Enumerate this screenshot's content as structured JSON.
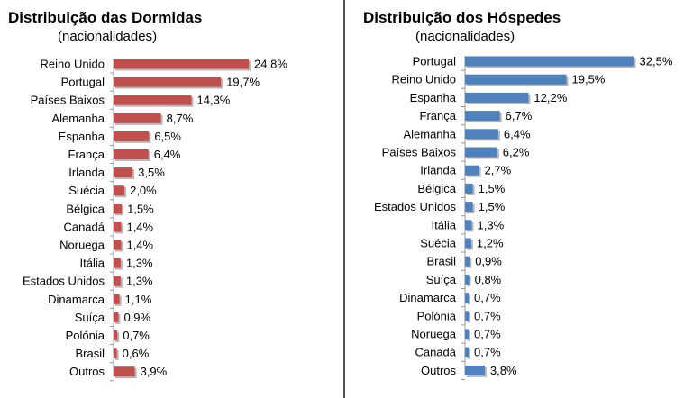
{
  "chart_data": [
    {
      "type": "bar",
      "orientation": "horizontal",
      "title": "Distribuição das Dormidas",
      "subtitle": "(nacionalidades)",
      "color": "#c0504d",
      "categories": [
        "Reino Unido",
        "Portugal",
        "Países Baixos",
        "Alemanha",
        "Espanha",
        "França",
        "Irlanda",
        "Suécia",
        "Bélgica",
        "Canadá",
        "Noruega",
        "Itália",
        "Estados Unidos",
        "Dinamarca",
        "Suíça",
        "Polónia",
        "Brasil",
        "Outros"
      ],
      "values": [
        24.8,
        19.7,
        14.3,
        8.7,
        6.5,
        6.4,
        3.5,
        2.0,
        1.5,
        1.4,
        1.4,
        1.3,
        1.3,
        1.1,
        0.9,
        0.7,
        0.6,
        3.9
      ],
      "labels": [
        "24,8%",
        "19,7%",
        "14,3%",
        "8,7%",
        "6,5%",
        "6,4%",
        "3,5%",
        "2,0%",
        "1,5%",
        "1,4%",
        "1,4%",
        "1,3%",
        "1,3%",
        "1,1%",
        "0,9%",
        "0,7%",
        "0,6%",
        "3,9%"
      ]
    },
    {
      "type": "bar",
      "orientation": "horizontal",
      "title": "Distribuição dos Hóspedes",
      "subtitle": "(nacionalidades)",
      "color": "#4f81bd",
      "categories": [
        "Portugal",
        "Reino Unido",
        "Espanha",
        "França",
        "Alemanha",
        "Países Baixos",
        "Irlanda",
        "Bélgica",
        "Estados Unidos",
        "Itália",
        "Suécia",
        "Brasil",
        "Suíça",
        "Dinamarca",
        "Polónia",
        "Noruega",
        "Canadá",
        "Outros"
      ],
      "values": [
        32.5,
        19.5,
        12.2,
        6.7,
        6.4,
        6.2,
        2.7,
        1.5,
        1.5,
        1.3,
        1.2,
        0.9,
        0.8,
        0.7,
        0.7,
        0.7,
        0.7,
        3.8
      ],
      "labels": [
        "32,5%",
        "19,5%",
        "12,2%",
        "6,7%",
        "6,4%",
        "6,2%",
        "2,7%",
        "1,5%",
        "1,5%",
        "1,3%",
        "1,2%",
        "0,9%",
        "0,8%",
        "0,7%",
        "0,7%",
        "0,7%",
        "0,7%",
        "3,8%"
      ]
    }
  ]
}
